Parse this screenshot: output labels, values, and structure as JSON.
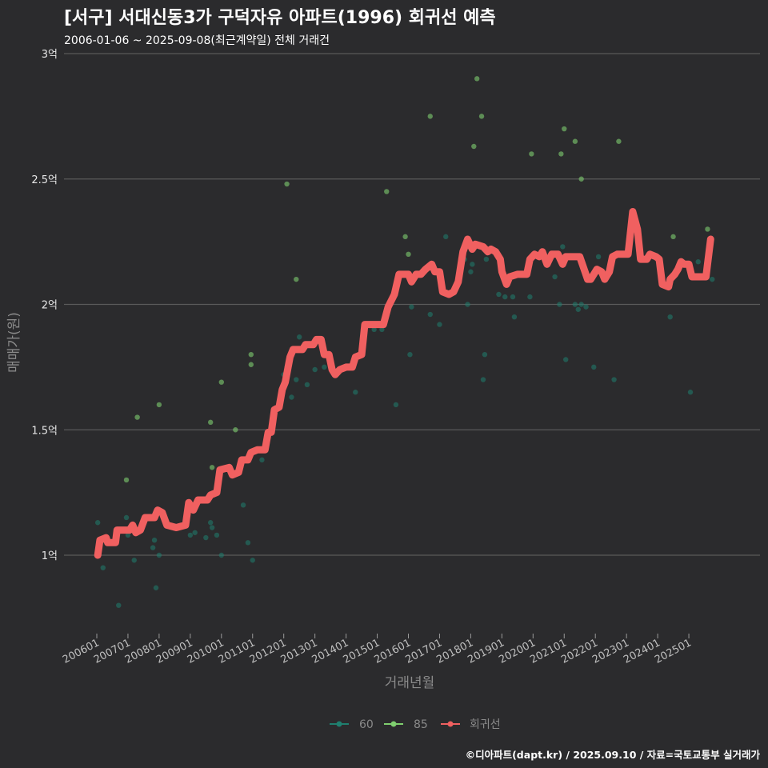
{
  "header": {
    "title": "[서구] 서대신동3가 구덕자유 아파트(1996) 회귀선 예측",
    "subtitle": "2006-01-06 ~ 2025-09-08(최근계약일) 전체 거래건"
  },
  "footer": {
    "credit": "©디아파트(dapt.kr) / 2025.09.10 / 자료=국토교통부 실거래가"
  },
  "colors": {
    "background": "#2b2b2d",
    "grid": "#5a5a5a",
    "series_60": "#1f7f6f",
    "series_85": "#7fcf6f",
    "regression": "#f06060"
  },
  "chart_data": {
    "type": "scatter",
    "title": "[서구] 서대신동3가 구덕자유 아파트(1996) 회귀선 예측",
    "xlabel": "거래년월",
    "ylabel": "매매가(원)",
    "xlim": [
      2006.0,
      2025.75
    ],
    "ylim": [
      0.7,
      3.0
    ],
    "y_ticks": [
      {
        "value": 1.0,
        "label": "1억"
      },
      {
        "value": 1.5,
        "label": "1.5억"
      },
      {
        "value": 2.0,
        "label": "2억"
      },
      {
        "value": 2.5,
        "label": "2.5억"
      },
      {
        "value": 3.0,
        "label": "3억"
      }
    ],
    "x_ticks": [
      {
        "value": 2006.0,
        "label": "200601"
      },
      {
        "value": 2007.0,
        "label": "200701"
      },
      {
        "value": 2008.0,
        "label": "200801"
      },
      {
        "value": 2009.0,
        "label": "200901"
      },
      {
        "value": 2010.0,
        "label": "201001"
      },
      {
        "value": 2011.0,
        "label": "201101"
      },
      {
        "value": 2012.0,
        "label": "201201"
      },
      {
        "value": 2013.0,
        "label": "201301"
      },
      {
        "value": 2014.0,
        "label": "201401"
      },
      {
        "value": 2015.0,
        "label": "201501"
      },
      {
        "value": 2016.0,
        "label": "201601"
      },
      {
        "value": 2017.0,
        "label": "201701"
      },
      {
        "value": 2018.0,
        "label": "201801"
      },
      {
        "value": 2019.0,
        "label": "201901"
      },
      {
        "value": 2020.0,
        "label": "202001"
      },
      {
        "value": 2021.0,
        "label": "202101"
      },
      {
        "value": 2022.0,
        "label": "202201"
      },
      {
        "value": 2023.0,
        "label": "202301"
      },
      {
        "value": 2024.0,
        "label": "202401"
      },
      {
        "value": 2025.0,
        "label": "202501"
      }
    ],
    "legend": [
      {
        "name": "60",
        "color": "#1f7f6f"
      },
      {
        "name": "85",
        "color": "#7fcf6f"
      },
      {
        "name": "회귀선",
        "color": "#f06060"
      }
    ],
    "legend_position": "bottom",
    "series": [
      {
        "name": "60",
        "points": [
          [
            2006.03,
            1.13
          ],
          [
            2006.2,
            0.95
          ],
          [
            2006.7,
            0.8
          ],
          [
            2006.95,
            1.15
          ],
          [
            2007.0,
            1.08
          ],
          [
            2007.2,
            0.98
          ],
          [
            2007.8,
            1.03
          ],
          [
            2007.85,
            1.06
          ],
          [
            2007.9,
            0.87
          ],
          [
            2008.0,
            1.0
          ],
          [
            2008.7,
            1.12
          ],
          [
            2009.0,
            1.08
          ],
          [
            2009.15,
            1.09
          ],
          [
            2009.5,
            1.07
          ],
          [
            2009.65,
            1.13
          ],
          [
            2009.7,
            1.11
          ],
          [
            2009.85,
            1.08
          ],
          [
            2010.0,
            1.0
          ],
          [
            2010.7,
            1.2
          ],
          [
            2010.85,
            1.05
          ],
          [
            2011.0,
            0.98
          ],
          [
            2011.3,
            1.38
          ],
          [
            2012.0,
            1.72
          ],
          [
            2012.1,
            1.75
          ],
          [
            2012.25,
            1.63
          ],
          [
            2012.4,
            1.7
          ],
          [
            2012.5,
            1.87
          ],
          [
            2012.75,
            1.68
          ],
          [
            2013.0,
            1.74
          ],
          [
            2013.3,
            1.75
          ],
          [
            2014.3,
            1.65
          ],
          [
            2014.9,
            1.9
          ],
          [
            2015.15,
            1.9
          ],
          [
            2015.6,
            1.6
          ],
          [
            2016.05,
            1.8
          ],
          [
            2016.1,
            1.99
          ],
          [
            2016.7,
            1.96
          ],
          [
            2017.0,
            1.92
          ],
          [
            2017.2,
            2.27
          ],
          [
            2017.8,
            2.18
          ],
          [
            2017.9,
            2.0
          ],
          [
            2018.0,
            2.13
          ],
          [
            2018.05,
            2.16
          ],
          [
            2018.4,
            1.7
          ],
          [
            2018.45,
            1.8
          ],
          [
            2018.5,
            2.18
          ],
          [
            2018.9,
            2.04
          ],
          [
            2019.1,
            2.03
          ],
          [
            2019.35,
            2.03
          ],
          [
            2019.4,
            1.95
          ],
          [
            2019.9,
            2.03
          ],
          [
            2020.3,
            2.19
          ],
          [
            2020.7,
            2.11
          ],
          [
            2020.85,
            2.0
          ],
          [
            2020.95,
            2.23
          ],
          [
            2021.05,
            1.78
          ],
          [
            2021.35,
            2.0
          ],
          [
            2021.45,
            1.98
          ],
          [
            2021.55,
            2.0
          ],
          [
            2021.7,
            1.99
          ],
          [
            2021.95,
            1.75
          ],
          [
            2022.1,
            2.19
          ],
          [
            2022.6,
            1.7
          ],
          [
            2024.4,
            1.95
          ],
          [
            2025.05,
            1.65
          ],
          [
            2025.3,
            2.17
          ],
          [
            2025.75,
            2.1
          ]
        ]
      },
      {
        "name": "85",
        "points": [
          [
            2006.95,
            1.3
          ],
          [
            2007.3,
            1.55
          ],
          [
            2008.0,
            1.6
          ],
          [
            2009.65,
            1.53
          ],
          [
            2009.7,
            1.35
          ],
          [
            2010.0,
            1.69
          ],
          [
            2010.45,
            1.5
          ],
          [
            2010.95,
            1.76
          ],
          [
            2010.95,
            1.8
          ],
          [
            2012.1,
            2.48
          ],
          [
            2012.4,
            2.1
          ],
          [
            2015.3,
            2.45
          ],
          [
            2015.9,
            2.27
          ],
          [
            2016.0,
            2.2
          ],
          [
            2016.7,
            2.75
          ],
          [
            2018.1,
            2.63
          ],
          [
            2018.2,
            2.9
          ],
          [
            2018.35,
            2.75
          ],
          [
            2019.95,
            2.6
          ],
          [
            2020.9,
            2.6
          ],
          [
            2021.0,
            2.7
          ],
          [
            2021.35,
            2.65
          ],
          [
            2021.55,
            2.5
          ],
          [
            2022.75,
            2.65
          ],
          [
            2024.5,
            2.27
          ],
          [
            2025.6,
            2.3
          ]
        ]
      }
    ],
    "regression": {
      "name": "회귀선",
      "points": [
        [
          2006.03,
          1.0
        ],
        [
          2006.1,
          1.06
        ],
        [
          2006.3,
          1.07
        ],
        [
          2006.35,
          1.05
        ],
        [
          2006.6,
          1.05
        ],
        [
          2006.65,
          1.1
        ],
        [
          2007.05,
          1.1
        ],
        [
          2007.15,
          1.12
        ],
        [
          2007.25,
          1.09
        ],
        [
          2007.4,
          1.1
        ],
        [
          2007.55,
          1.15
        ],
        [
          2007.85,
          1.15
        ],
        [
          2007.95,
          1.18
        ],
        [
          2008.1,
          1.17
        ],
        [
          2008.25,
          1.12
        ],
        [
          2008.55,
          1.11
        ],
        [
          2008.85,
          1.12
        ],
        [
          2008.95,
          1.21
        ],
        [
          2009.1,
          1.18
        ],
        [
          2009.25,
          1.22
        ],
        [
          2009.55,
          1.22
        ],
        [
          2009.65,
          1.24
        ],
        [
          2009.85,
          1.25
        ],
        [
          2009.95,
          1.34
        ],
        [
          2010.25,
          1.35
        ],
        [
          2010.35,
          1.32
        ],
        [
          2010.55,
          1.33
        ],
        [
          2010.65,
          1.38
        ],
        [
          2010.85,
          1.38
        ],
        [
          2010.95,
          1.41
        ],
        [
          2011.15,
          1.42
        ],
        [
          2011.4,
          1.42
        ],
        [
          2011.5,
          1.49
        ],
        [
          2011.6,
          1.49
        ],
        [
          2011.7,
          1.58
        ],
        [
          2011.85,
          1.59
        ],
        [
          2011.95,
          1.66
        ],
        [
          2012.05,
          1.69
        ],
        [
          2012.2,
          1.79
        ],
        [
          2012.3,
          1.82
        ],
        [
          2012.6,
          1.82
        ],
        [
          2012.7,
          1.84
        ],
        [
          2012.95,
          1.84
        ],
        [
          2013.05,
          1.86
        ],
        [
          2013.2,
          1.86
        ],
        [
          2013.3,
          1.8
        ],
        [
          2013.45,
          1.8
        ],
        [
          2013.55,
          1.74
        ],
        [
          2013.65,
          1.72
        ],
        [
          2013.8,
          1.74
        ],
        [
          2014.0,
          1.75
        ],
        [
          2014.2,
          1.75
        ],
        [
          2014.3,
          1.79
        ],
        [
          2014.5,
          1.8
        ],
        [
          2014.6,
          1.92
        ],
        [
          2015.2,
          1.92
        ],
        [
          2015.35,
          1.99
        ],
        [
          2015.55,
          2.04
        ],
        [
          2015.7,
          2.12
        ],
        [
          2015.85,
          2.12
        ],
        [
          2016.0,
          2.12
        ],
        [
          2016.1,
          2.09
        ],
        [
          2016.25,
          2.12
        ],
        [
          2016.4,
          2.12
        ],
        [
          2016.55,
          2.14
        ],
        [
          2016.75,
          2.16
        ],
        [
          2016.85,
          2.13
        ],
        [
          2017.0,
          2.13
        ],
        [
          2017.1,
          2.05
        ],
        [
          2017.3,
          2.04
        ],
        [
          2017.45,
          2.05
        ],
        [
          2017.6,
          2.09
        ],
        [
          2017.75,
          2.21
        ],
        [
          2017.9,
          2.26
        ],
        [
          2018.05,
          2.22
        ],
        [
          2018.15,
          2.24
        ],
        [
          2018.4,
          2.23
        ],
        [
          2018.55,
          2.21
        ],
        [
          2018.65,
          2.22
        ],
        [
          2018.8,
          2.21
        ],
        [
          2018.95,
          2.18
        ],
        [
          2019.0,
          2.13
        ],
        [
          2019.15,
          2.08
        ],
        [
          2019.25,
          2.11
        ],
        [
          2019.5,
          2.12
        ],
        [
          2019.6,
          2.12
        ],
        [
          2019.8,
          2.12
        ],
        [
          2019.9,
          2.18
        ],
        [
          2020.05,
          2.2
        ],
        [
          2020.2,
          2.19
        ],
        [
          2020.3,
          2.21
        ],
        [
          2020.45,
          2.16
        ],
        [
          2020.6,
          2.2
        ],
        [
          2020.8,
          2.2
        ],
        [
          2020.95,
          2.16
        ],
        [
          2021.05,
          2.19
        ],
        [
          2021.5,
          2.19
        ],
        [
          2021.75,
          2.1
        ],
        [
          2021.85,
          2.1
        ],
        [
          2022.05,
          2.14
        ],
        [
          2022.2,
          2.13
        ],
        [
          2022.3,
          2.1
        ],
        [
          2022.45,
          2.13
        ],
        [
          2022.55,
          2.19
        ],
        [
          2022.7,
          2.2
        ],
        [
          2022.9,
          2.2
        ],
        [
          2023.05,
          2.2
        ],
        [
          2023.2,
          2.37
        ],
        [
          2023.35,
          2.3
        ],
        [
          2023.45,
          2.18
        ],
        [
          2023.65,
          2.18
        ],
        [
          2023.75,
          2.2
        ],
        [
          2023.95,
          2.19
        ],
        [
          2024.05,
          2.18
        ],
        [
          2024.15,
          2.08
        ],
        [
          2024.35,
          2.07
        ],
        [
          2024.4,
          2.1
        ],
        [
          2024.55,
          2.12
        ],
        [
          2024.65,
          2.14
        ],
        [
          2024.75,
          2.17
        ],
        [
          2024.85,
          2.16
        ],
        [
          2025.0,
          2.16
        ],
        [
          2025.1,
          2.11
        ],
        [
          2025.25,
          2.11
        ],
        [
          2025.55,
          2.11
        ],
        [
          2025.6,
          2.16
        ],
        [
          2025.7,
          2.26
        ]
      ]
    }
  }
}
